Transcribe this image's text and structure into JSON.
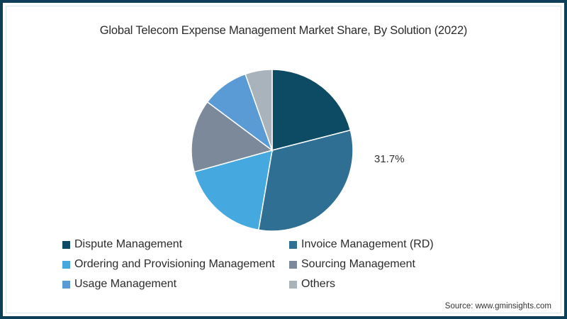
{
  "chart_data": {
    "type": "pie",
    "title": "Global Telecom Expense Management Market Share, By Solution (2022)",
    "categories": [
      "Dispute Management",
      "Invoice Management (RD)",
      "Ordering and Provisioning Management",
      "Sourcing Management",
      "Usage Management",
      "Others"
    ],
    "values": [
      21.0,
      31.7,
      18.0,
      14.5,
      9.4,
      5.4
    ],
    "colors": [
      "#0d4a63",
      "#2f6f93",
      "#45a9df",
      "#7b899a",
      "#5b9bd5",
      "#a9b3bc"
    ],
    "annotations": [
      {
        "slice": "Invoice Management (RD)",
        "label": "31.7%"
      }
    ],
    "legend_position": "bottom",
    "start_angle_deg": 0,
    "direction": "clockwise"
  },
  "title": "Global Telecom Expense Management Market Share, By Solution (2022)",
  "highlight_label": "31.7%",
  "legend": [
    {
      "label": "Dispute Management",
      "color": "#0d4a63"
    },
    {
      "label": "Invoice Management (RD)",
      "color": "#2f6f93"
    },
    {
      "label": "Ordering and Provisioning Management",
      "color": "#45a9df"
    },
    {
      "label": "Sourcing Management",
      "color": "#7b899a"
    },
    {
      "label": "Usage Management",
      "color": "#5b9bd5"
    },
    {
      "label": "Others",
      "color": "#a9b3bc"
    }
  ],
  "source": "Source: www.gminsights.com"
}
